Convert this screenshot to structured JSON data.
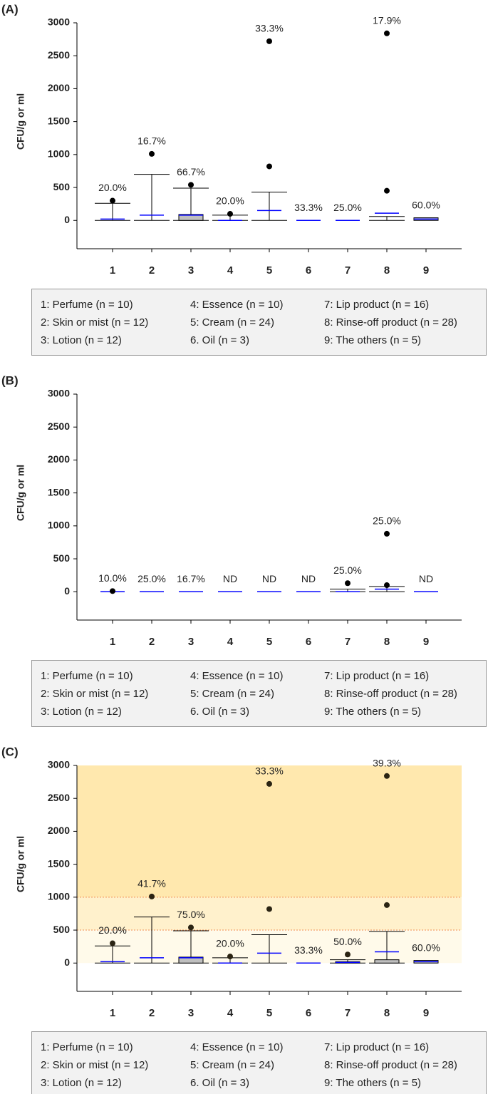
{
  "chart_data": [
    {
      "type": "box",
      "panel_label": "(A)",
      "ylabel": "CFU/g or ml",
      "categories": [
        "1",
        "2",
        "3",
        "4",
        "5",
        "6",
        "7",
        "8",
        "9"
      ],
      "ylim": [
        -430,
        3000
      ],
      "yticks": [
        0,
        500,
        1000,
        1500,
        2000,
        2500,
        3000
      ],
      "whisker_low": [
        0,
        0,
        0,
        0,
        0,
        null,
        null,
        0,
        null
      ],
      "whisker_high": [
        260,
        700,
        490,
        80,
        430,
        null,
        null,
        60,
        null
      ],
      "q1": [
        null,
        null,
        0,
        null,
        null,
        null,
        null,
        null,
        0
      ],
      "q3": [
        null,
        null,
        90,
        null,
        null,
        null,
        null,
        null,
        40
      ],
      "median": [
        20,
        80,
        80,
        0,
        150,
        0,
        0,
        110,
        20
      ],
      "outliers": [
        [
          300
        ],
        [
          1010
        ],
        [
          540
        ],
        [
          100
        ],
        [
          2720,
          820
        ],
        [],
        [],
        [
          2840,
          450
        ],
        []
      ],
      "value_labels": [
        "20.0%",
        "16.7%",
        "66.7%",
        "20.0%",
        "33.3%",
        "33.3%",
        "25.0%",
        "17.9%",
        "60.0%"
      ],
      "box_color": "#bfbfbf",
      "median_color": "#0000ff",
      "outlier_color": "#000000",
      "legend": [
        "1: Perfume (n = 10)",
        "2: Skin or mist (n = 12)",
        "3: Lotion (n = 12)",
        "4: Essence (n = 10)",
        "5: Cream (n = 24)",
        "6. Oil (n = 3)",
        "7: Lip product (n = 16)",
        "8: Rinse-off product (n = 28)",
        "9: The others (n = 5)"
      ]
    },
    {
      "type": "box",
      "panel_label": "(B)",
      "ylabel": "CFU/g or ml",
      "categories": [
        "1",
        "2",
        "3",
        "4",
        "5",
        "6",
        "7",
        "8",
        "9"
      ],
      "ylim": [
        -430,
        3000
      ],
      "yticks": [
        0,
        500,
        1000,
        1500,
        2000,
        2500,
        3000
      ],
      "whisker_low": [
        null,
        null,
        null,
        null,
        null,
        null,
        0,
        0,
        null
      ],
      "whisker_high": [
        null,
        null,
        null,
        null,
        null,
        null,
        40,
        80,
        null
      ],
      "q1": [
        null,
        null,
        null,
        null,
        null,
        null,
        null,
        null,
        null
      ],
      "q3": [
        null,
        null,
        null,
        null,
        null,
        null,
        null,
        null,
        null
      ],
      "median": [
        0,
        0,
        0,
        0,
        0,
        0,
        0,
        40,
        0
      ],
      "outliers": [
        [
          10
        ],
        [],
        [],
        [],
        [],
        [],
        [
          130
        ],
        [
          880,
          100
        ],
        []
      ],
      "value_labels": [
        "10.0%",
        "25.0%",
        "16.7%",
        "ND",
        "ND",
        "ND",
        "25.0%",
        "25.0%",
        "ND"
      ],
      "box_color": "#bfbfbf",
      "median_color": "#0000ff",
      "outlier_color": "#000000",
      "legend": [
        "1: Perfume (n = 10)",
        "2: Skin or mist (n = 12)",
        "3: Lotion (n = 12)",
        "4: Essence (n = 10)",
        "5: Cream (n = 24)",
        "6. Oil (n = 3)",
        "7: Lip product (n = 16)",
        "8: Rinse-off product (n = 28)",
        "9: The others (n = 5)"
      ]
    },
    {
      "type": "box",
      "panel_label": "(C)",
      "ylabel": "CFU/g or ml",
      "categories": [
        "1",
        "2",
        "3",
        "4",
        "5",
        "6",
        "7",
        "8",
        "9"
      ],
      "ylim": [
        -430,
        3000
      ],
      "yticks": [
        0,
        500,
        1000,
        1500,
        2000,
        2500,
        3000
      ],
      "bands": [
        {
          "from": 0,
          "to": 500,
          "color": "#fffaea"
        },
        {
          "from": 500,
          "to": 1000,
          "color": "#fff1cc"
        },
        {
          "from": 1000,
          "to": 3000,
          "color": "#ffe8ae"
        }
      ],
      "thresholds": [
        500,
        1000
      ],
      "threshold_color": "#f08c50",
      "whisker_low": [
        0,
        0,
        0,
        0,
        0,
        null,
        0,
        0,
        null
      ],
      "whisker_high": [
        260,
        700,
        490,
        80,
        430,
        null,
        50,
        480,
        null
      ],
      "q1": [
        null,
        null,
        0,
        null,
        null,
        null,
        0,
        0,
        0
      ],
      "q3": [
        null,
        null,
        90,
        null,
        null,
        null,
        20,
        50,
        40
      ],
      "median": [
        20,
        80,
        80,
        0,
        150,
        0,
        10,
        170,
        20
      ],
      "outliers": [
        [
          300
        ],
        [
          1010
        ],
        [
          540
        ],
        [
          100
        ],
        [
          2720,
          820
        ],
        [],
        [
          130
        ],
        [
          2840,
          880
        ],
        []
      ],
      "value_labels": [
        "20.0%",
        "41.7%",
        "75.0%",
        "20.0%",
        "33.3%",
        "33.3%",
        "50.0%",
        "39.3%",
        "60.0%"
      ],
      "box_color": "#bfbfbf",
      "median_color": "#0000ff",
      "outlier_color": "#2b2413",
      "legend": [
        "1: Perfume (n = 10)",
        "2: Skin or mist (n = 12)",
        "3: Lotion (n = 12)",
        "4: Essence (n = 10)",
        "5: Cream (n = 24)",
        "6. Oil (n = 3)",
        "7: Lip product (n = 16)",
        "8: Rinse-off product (n = 28)",
        "9: The others (n = 5)"
      ]
    }
  ]
}
